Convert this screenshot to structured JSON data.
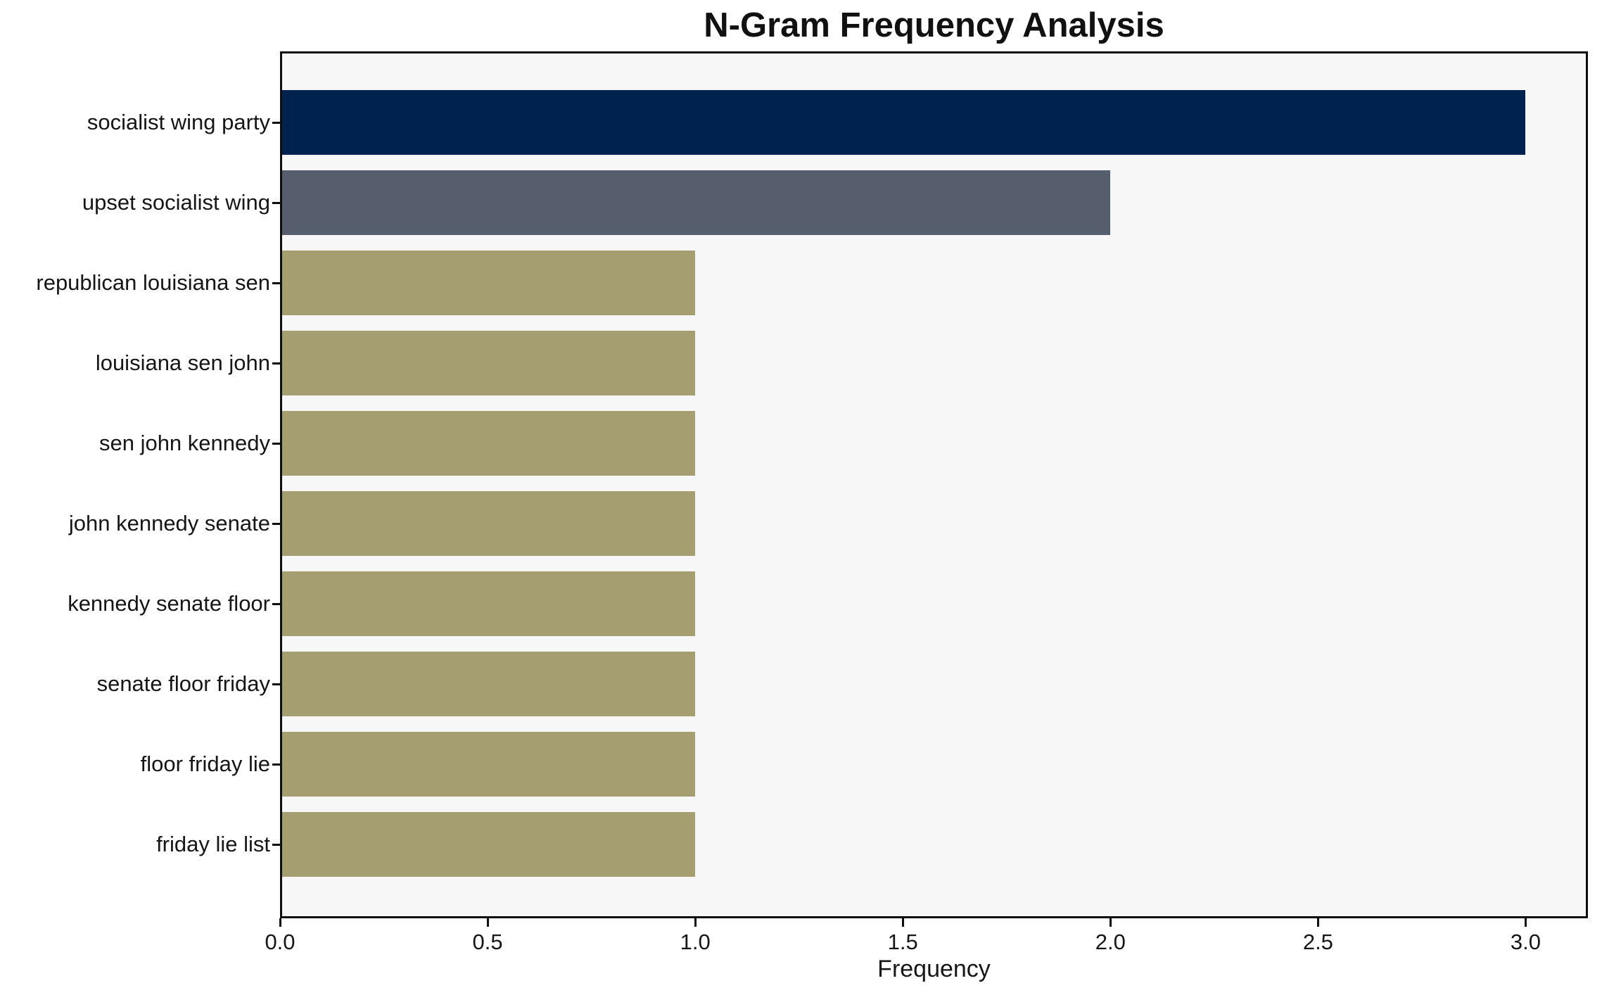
{
  "chart": {
    "title": "N-Gram Frequency Analysis",
    "xlabel": "Frequency"
  },
  "chart_data": {
    "type": "bar",
    "orientation": "horizontal",
    "title": "N-Gram Frequency Analysis",
    "xlabel": "Frequency",
    "ylabel": "",
    "categories": [
      "socialist wing party",
      "upset socialist wing",
      "republican louisiana sen",
      "louisiana sen john",
      "sen john kennedy",
      "john kennedy senate",
      "kennedy senate floor",
      "senate floor friday",
      "floor friday lie",
      "friday lie list"
    ],
    "values": [
      3,
      2,
      1,
      1,
      1,
      1,
      1,
      1,
      1,
      1
    ],
    "bar_colors": [
      "#00224e",
      "#565d6c",
      "#a59e71",
      "#a59e71",
      "#a59e71",
      "#a59e71",
      "#a59e71",
      "#a59e71",
      "#a59e71",
      "#a59e71"
    ],
    "xlim": [
      0,
      3.15
    ],
    "xticks": [
      0,
      0.5,
      1,
      1.5,
      2,
      2.5,
      3
    ],
    "xtick_labels": [
      "0.0",
      "0.5",
      "1.0",
      "1.5",
      "2.0",
      "2.5",
      "3.0"
    ],
    "grid": false,
    "legend_position": "none",
    "plot_bg": "#f7f7f8",
    "figure_bg": "#ffffff",
    "spine_color": "#0e0e0e",
    "text_color": "#161616"
  }
}
